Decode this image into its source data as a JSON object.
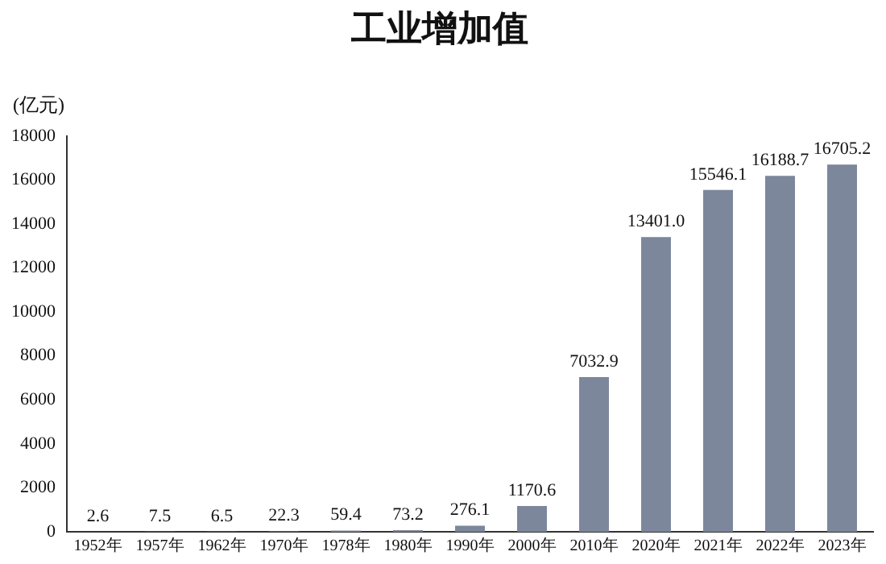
{
  "chart_data": {
    "type": "bar",
    "title": "工业增加值",
    "ylabel": "(亿元)",
    "categories": [
      "1952年",
      "1957年",
      "1962年",
      "1970年",
      "1978年",
      "1980年",
      "1990年",
      "2000年",
      "2010年",
      "2020年",
      "2021年",
      "2022年",
      "2023年"
    ],
    "values": [
      2.6,
      7.5,
      6.5,
      22.3,
      59.4,
      73.2,
      276.1,
      1170.6,
      7032.9,
      13401.0,
      15546.1,
      16188.7,
      16705.2
    ],
    "value_labels": [
      "2.6",
      "7.5",
      "6.5",
      "22.3",
      "59.4",
      "73.2",
      "276.1",
      "1170.6",
      "7032.9",
      "13401.0",
      "15546.1",
      "16188.7",
      "16705.2"
    ],
    "color": "#7c879c",
    "ylim": [
      0,
      18000
    ],
    "yticks": [
      0,
      2000,
      4000,
      6000,
      8000,
      10000,
      12000,
      14000,
      16000,
      18000
    ],
    "grid": false
  }
}
